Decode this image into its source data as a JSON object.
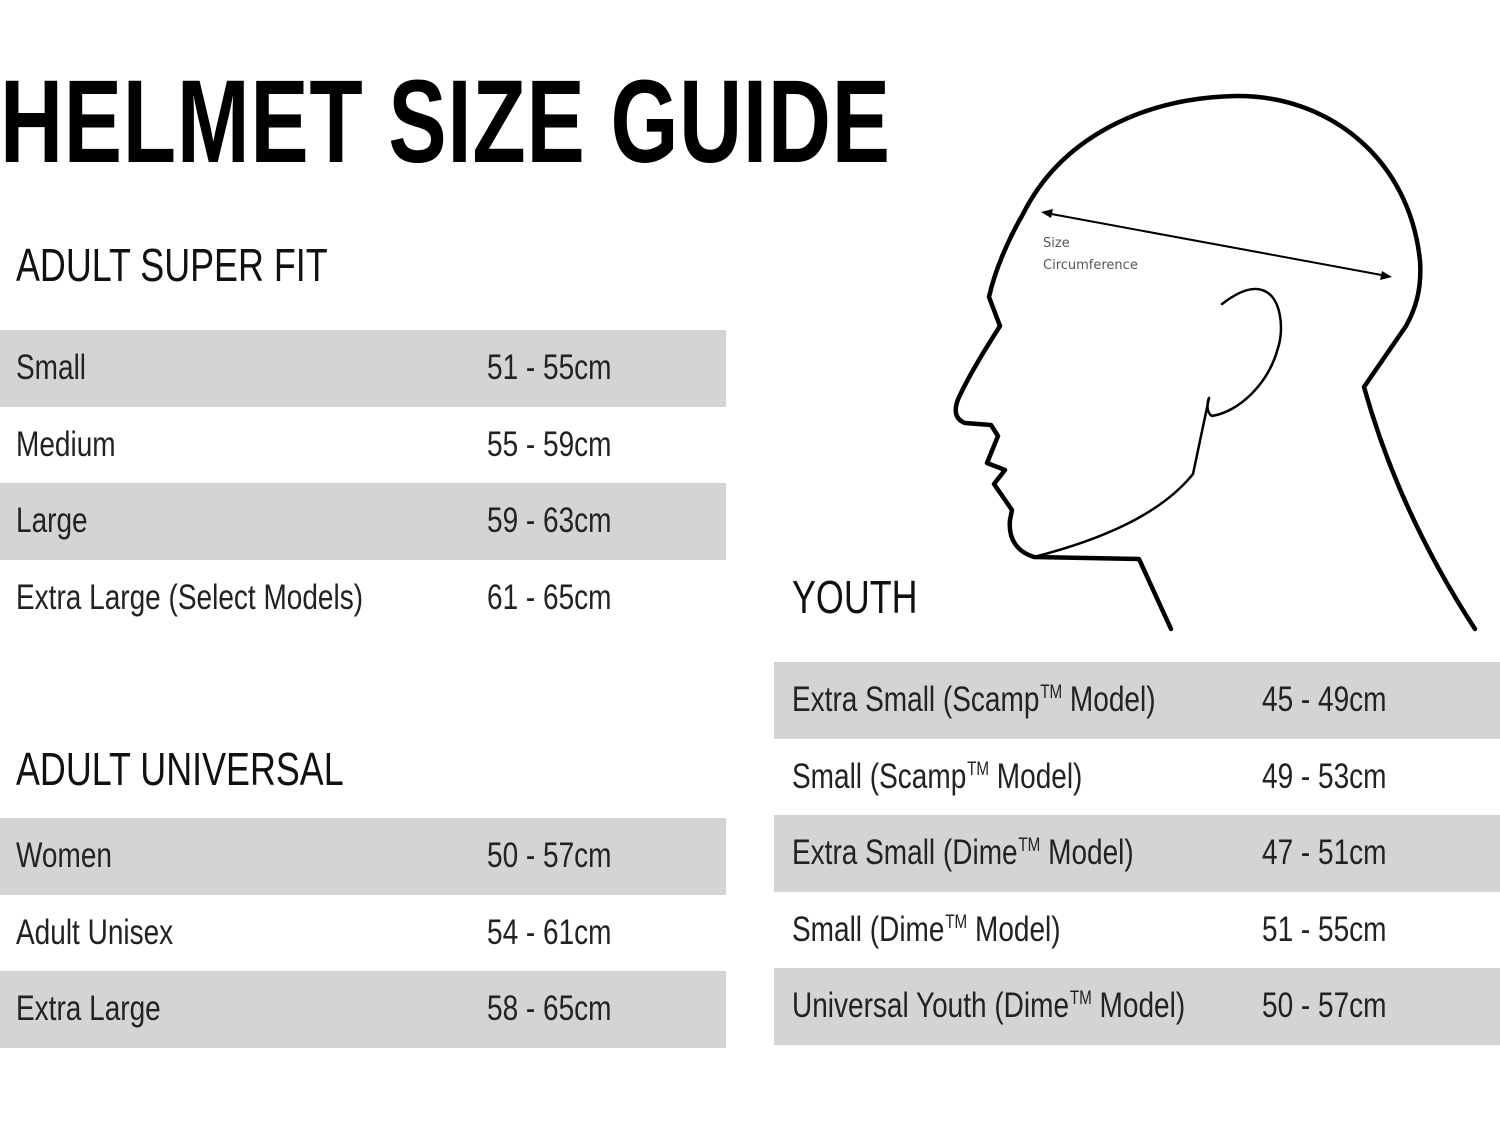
{
  "title": "HELMET SIZE GUIDE",
  "diagram": {
    "label_line1": "Size",
    "label_line2": "Circumference"
  },
  "adult_super_fit": {
    "heading": "ADULT SUPER FIT",
    "rows": [
      {
        "size": "Small",
        "range": "51 - 55cm"
      },
      {
        "size": "Medium",
        "range": "55 - 59cm"
      },
      {
        "size": "Large",
        "range": "59 - 63cm"
      },
      {
        "size": "Extra Large (Select Models)",
        "range": "61 - 65cm"
      }
    ]
  },
  "adult_universal": {
    "heading": "ADULT UNIVERSAL",
    "rows": [
      {
        "size": "Women",
        "range": "50 - 57cm"
      },
      {
        "size": "Adult Unisex",
        "range": "54 - 61cm"
      },
      {
        "size": "Extra Large",
        "range": "58 - 65cm"
      }
    ]
  },
  "youth": {
    "heading": "YOUTH",
    "tm": "TM",
    "rows": [
      {
        "pre": "Extra Small (Scamp",
        "post": " Model)",
        "range": "45 - 49cm"
      },
      {
        "pre": "Small (Scamp",
        "post": " Model)",
        "range": "49 - 53cm"
      },
      {
        "pre": "Extra Small (Dime",
        "post": " Model)",
        "range": "47 - 51cm"
      },
      {
        "pre": "Small (Dime",
        "post": " Model)",
        "range": "51 - 55cm"
      },
      {
        "pre": "Universal Youth (Dime",
        "post": " Model)",
        "range": "50 - 57cm"
      }
    ]
  },
  "colors": {
    "row_shade": "#d4d4d4",
    "text": "#1a1a1a"
  }
}
